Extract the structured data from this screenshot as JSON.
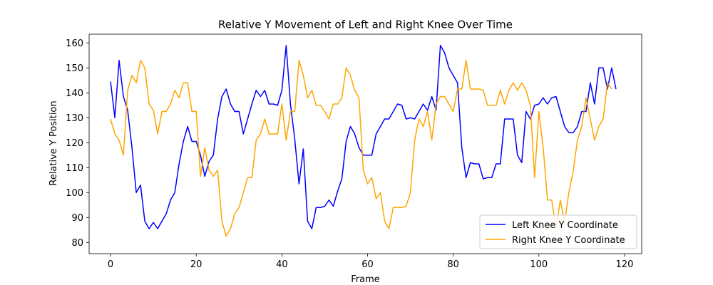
{
  "chart_data": {
    "type": "line",
    "title": "Relative Y Movement of Left and Right Knee Over Time",
    "xlabel": "Frame",
    "ylabel": "Relative Y Position",
    "xlim": [
      -5,
      124
    ],
    "ylim": [
      75.5,
      163.5
    ],
    "xticks": [
      0,
      20,
      40,
      60,
      80,
      100,
      120
    ],
    "yticks": [
      80,
      90,
      100,
      110,
      120,
      130,
      140,
      150,
      160
    ],
    "grid": false,
    "legend_position": "lower-right",
    "series": [
      {
        "name": "Left Knee Y Coordinate",
        "color": "#0000ff",
        "values": [
          144.5,
          130.0,
          153.0,
          138.5,
          133.0,
          118.0,
          100.0,
          103.0,
          88.5,
          85.5,
          88.0,
          85.5,
          88.5,
          91.5,
          97.0,
          100.0,
          111.5,
          120.5,
          126.5,
          120.5,
          120.5,
          115.0,
          106.5,
          112.5,
          115.0,
          129.5,
          138.5,
          141.5,
          135.5,
          132.5,
          132.5,
          123.5,
          129.5,
          135.5,
          141.0,
          138.5,
          141.0,
          135.5,
          135.5,
          135.0,
          141.0,
          159.0,
          135.5,
          121.5,
          103.5,
          117.5,
          88.5,
          85.5,
          94.0,
          94.0,
          94.5,
          97.0,
          94.5,
          100.5,
          105.5,
          120.5,
          126.5,
          123.5,
          118.0,
          115.0,
          115.0,
          115.0,
          123.5,
          126.5,
          129.5,
          129.5,
          132.5,
          135.5,
          135.0,
          129.5,
          130.0,
          129.5,
          132.5,
          135.5,
          133.0,
          138.5,
          133.0,
          159.0,
          156.0,
          150.0,
          147.0,
          144.0,
          118.0,
          106.0,
          112.0,
          111.5,
          111.5,
          105.5,
          106.0,
          106.0,
          111.5,
          111.5,
          129.5,
          129.5,
          129.5,
          115.0,
          112.0,
          132.5,
          129.5,
          135.0,
          135.5,
          138.0,
          135.5,
          138.0,
          138.5,
          132.5,
          126.5,
          124.0,
          124.0,
          126.5,
          132.5,
          132.5,
          144.0,
          135.5,
          150.0,
          150.0,
          141.5,
          150.0,
          141.5
        ]
      },
      {
        "name": "Right Knee Y Coordinate",
        "color": "#ffa500",
        "values": [
          129.5,
          123.5,
          121.0,
          115.0,
          141.0,
          147.0,
          144.0,
          153.0,
          150.0,
          135.5,
          133.0,
          123.5,
          132.5,
          132.5,
          135.5,
          141.0,
          138.0,
          144.0,
          144.0,
          132.5,
          132.5,
          106.5,
          118.0,
          109.0,
          106.5,
          109.0,
          88.5,
          82.5,
          85.5,
          91.5,
          94.0,
          100.0,
          106.0,
          106.0,
          121.0,
          123.5,
          129.5,
          123.5,
          123.5,
          123.5,
          135.5,
          121.0,
          132.5,
          132.5,
          153.0,
          147.0,
          138.0,
          141.0,
          135.0,
          135.0,
          132.5,
          129.5,
          135.5,
          135.5,
          138.0,
          150.0,
          147.0,
          141.0,
          138.0,
          109.0,
          103.5,
          106.0,
          97.5,
          100.0,
          88.5,
          85.5,
          94.0,
          94.0,
          94.0,
          94.5,
          100.0,
          121.0,
          129.5,
          126.5,
          132.5,
          121.0,
          135.5,
          138.5,
          138.5,
          135.5,
          132.5,
          141.5,
          141.5,
          153.0,
          141.5,
          141.5,
          141.5,
          141.0,
          135.0,
          135.0,
          135.0,
          141.0,
          135.5,
          141.0,
          144.0,
          141.0,
          144.0,
          141.0,
          135.0,
          106.0,
          132.5,
          118.0,
          97.0,
          97.0,
          85.5,
          97.0,
          88.0,
          100.0,
          108.5,
          121.0,
          126.5,
          138.0,
          129.5,
          121.0,
          126.5,
          129.5,
          144.0,
          141.5
        ]
      }
    ]
  }
}
